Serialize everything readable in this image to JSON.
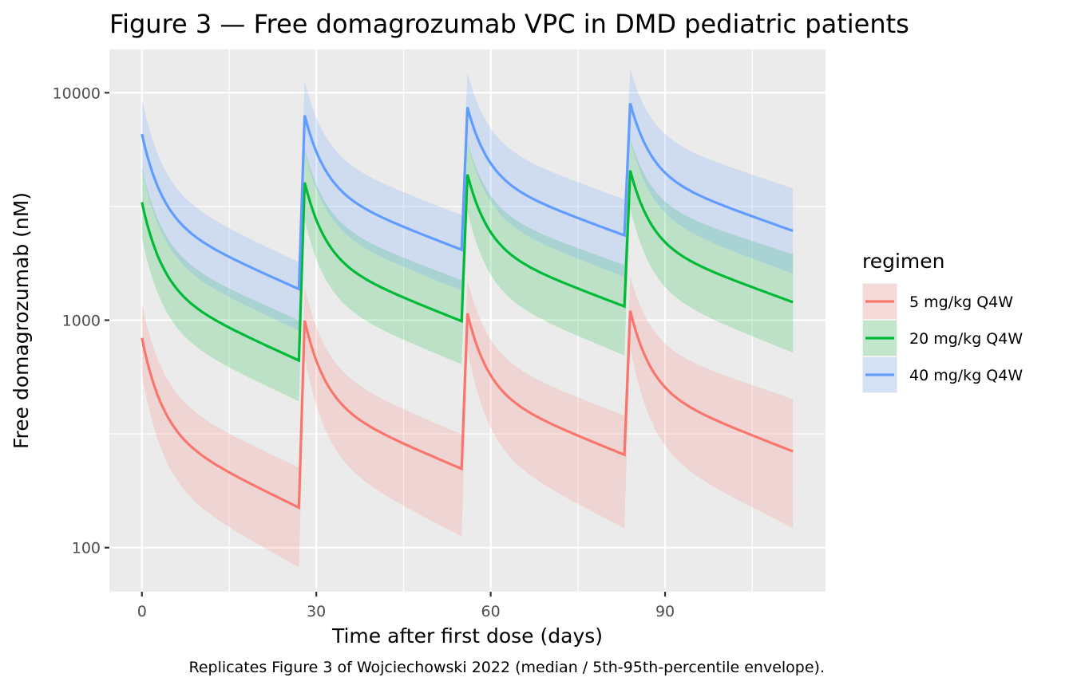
{
  "chart_data": {
    "type": "line",
    "title": "Figure 3 — Free domagrozumab VPC in DMD pediatric patients",
    "xlabel": "Time after first dose (days)",
    "ylabel": "Free domagrozumab (nM)",
    "caption": "Replicates Figure 3 of Wojciechowski 2022 (median / 5th-95th-percentile envelope).",
    "x_ticks": [
      0,
      30,
      60,
      90
    ],
    "x_tick_labels": [
      "0",
      "30",
      "60",
      "90"
    ],
    "xlim": [
      -5.6,
      117.6
    ],
    "y_scale": "log10",
    "y_ticks": [
      100,
      1000,
      10000
    ],
    "y_tick_labels": [
      "100",
      "1000",
      "10000"
    ],
    "ylim": [
      64,
      15500
    ],
    "grid": true,
    "legend": {
      "title": "regimen",
      "placement": "right",
      "entries": [
        "5 mg/kg Q4W",
        "20 mg/kg Q4W",
        "40 mg/kg Q4W"
      ]
    },
    "dose_times": [
      0,
      28,
      56,
      84
    ],
    "end_time": 112,
    "series": [
      {
        "name": "5 mg/kg Q4W",
        "color": "#F8766D",
        "median_peaks": [
          835,
          995,
          1070,
          1100
        ],
        "median_troughs": [
          150,
          222,
          256,
          265
        ],
        "p95_peaks": [
          1180,
          1400,
          1500,
          1550
        ],
        "p95_troughs": [
          225,
          315,
          380,
          450
        ],
        "p5_peaks": [
          580,
          690,
          740,
          760
        ],
        "p5_troughs": [
          82,
          112,
          122,
          122
        ]
      },
      {
        "name": "20 mg/kg Q4W",
        "color": "#00BA38",
        "median_peaks": [
          3300,
          4030,
          4370,
          4550
        ],
        "median_troughs": [
          665,
          990,
          1150,
          1200
        ],
        "p95_peaks": [
          4700,
          5650,
          6100,
          6300
        ],
        "p95_troughs": [
          1000,
          1500,
          1750,
          1950
        ],
        "p5_peaks": [
          2300,
          2750,
          3000,
          3100
        ],
        "p5_troughs": [
          440,
          640,
          700,
          720
        ]
      },
      {
        "name": "40 mg/kg Q4W",
        "color": "#619CFF",
        "median_peaks": [
          6580,
          7950,
          8630,
          8990
        ],
        "median_troughs": [
          1370,
          2040,
          2360,
          2470
        ],
        "p95_peaks": [
          9400,
          11200,
          12200,
          12700
        ],
        "p95_troughs": [
          1800,
          2900,
          3400,
          3800
        ],
        "p5_peaks": [
          4600,
          5500,
          6000,
          6200
        ],
        "p5_troughs": [
          900,
          1350,
          1550,
          1600
        ]
      }
    ]
  }
}
